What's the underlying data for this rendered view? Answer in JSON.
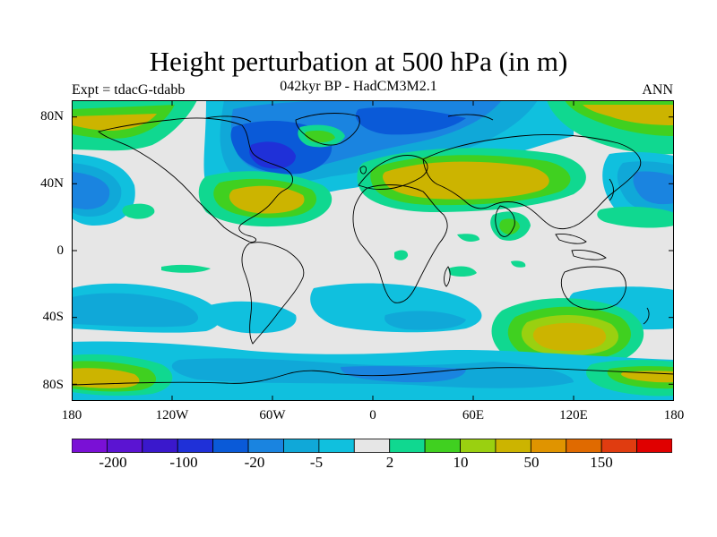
{
  "title": "Height perturbation at 500 hPa (in m)",
  "subtitle": "042kyr BP - HadCM3M2.1",
  "left_label": "Expt = tdacG-tdabb",
  "right_label": "ANN",
  "lat_ticks": [
    "80N",
    "40N",
    "0",
    "40S",
    "80S"
  ],
  "lon_ticks": [
    "180",
    "120W",
    "60W",
    "0",
    "60E",
    "120E",
    "180"
  ],
  "colorbar": {
    "colors": [
      "#7a10d6",
      "#5b14d2",
      "#3a18cc",
      "#1f30d8",
      "#0a5ad8",
      "#1a84e0",
      "#10a8d8",
      "#10c0de",
      "#e6e6e6",
      "#10d890",
      "#40d020",
      "#9ad010",
      "#ccb400",
      "#e09400",
      "#e06a00",
      "#e03c10",
      "#e00000"
    ],
    "labels": [
      "-200",
      "-100",
      "-20",
      "-5",
      "2",
      "10",
      "50",
      "150"
    ]
  },
  "field": {
    "background": "#e6e6e6",
    "coastline_color": "#000000"
  }
}
